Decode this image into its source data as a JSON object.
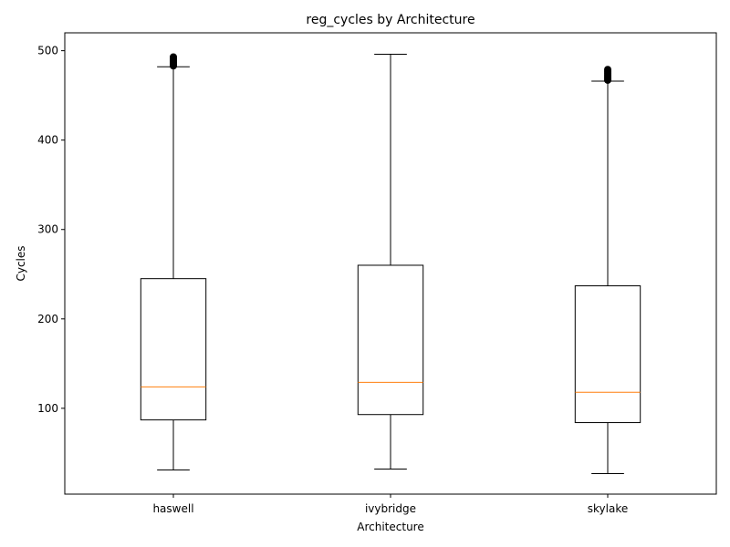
{
  "chart_data": {
    "type": "box",
    "title": "reg_cycles by Architecture",
    "xlabel": "Architecture",
    "ylabel": "Cycles",
    "ylim": [
      4,
      520
    ],
    "yticks": [
      100,
      200,
      300,
      400,
      500
    ],
    "grid": false,
    "categories": [
      "haswell",
      "ivybridge",
      "skylake"
    ],
    "boxes": [
      {
        "category": "haswell",
        "whisker_low": 31,
        "q1": 87,
        "median": 124,
        "q3": 245,
        "whisker_high": 482,
        "outliers": [
          483,
          485,
          487,
          489,
          491,
          493
        ]
      },
      {
        "category": "ivybridge",
        "whisker_low": 32,
        "q1": 93,
        "median": 129,
        "q3": 260,
        "whisker_high": 496,
        "outliers": []
      },
      {
        "category": "skylake",
        "whisker_low": 27,
        "q1": 84,
        "median": 118,
        "q3": 237,
        "whisker_high": 466,
        "outliers": [
          467,
          469,
          471,
          473,
          475,
          477,
          479
        ]
      }
    ],
    "colors": {
      "box": "#000000",
      "median": "#ff7f0e",
      "outlier": "#000000"
    }
  }
}
